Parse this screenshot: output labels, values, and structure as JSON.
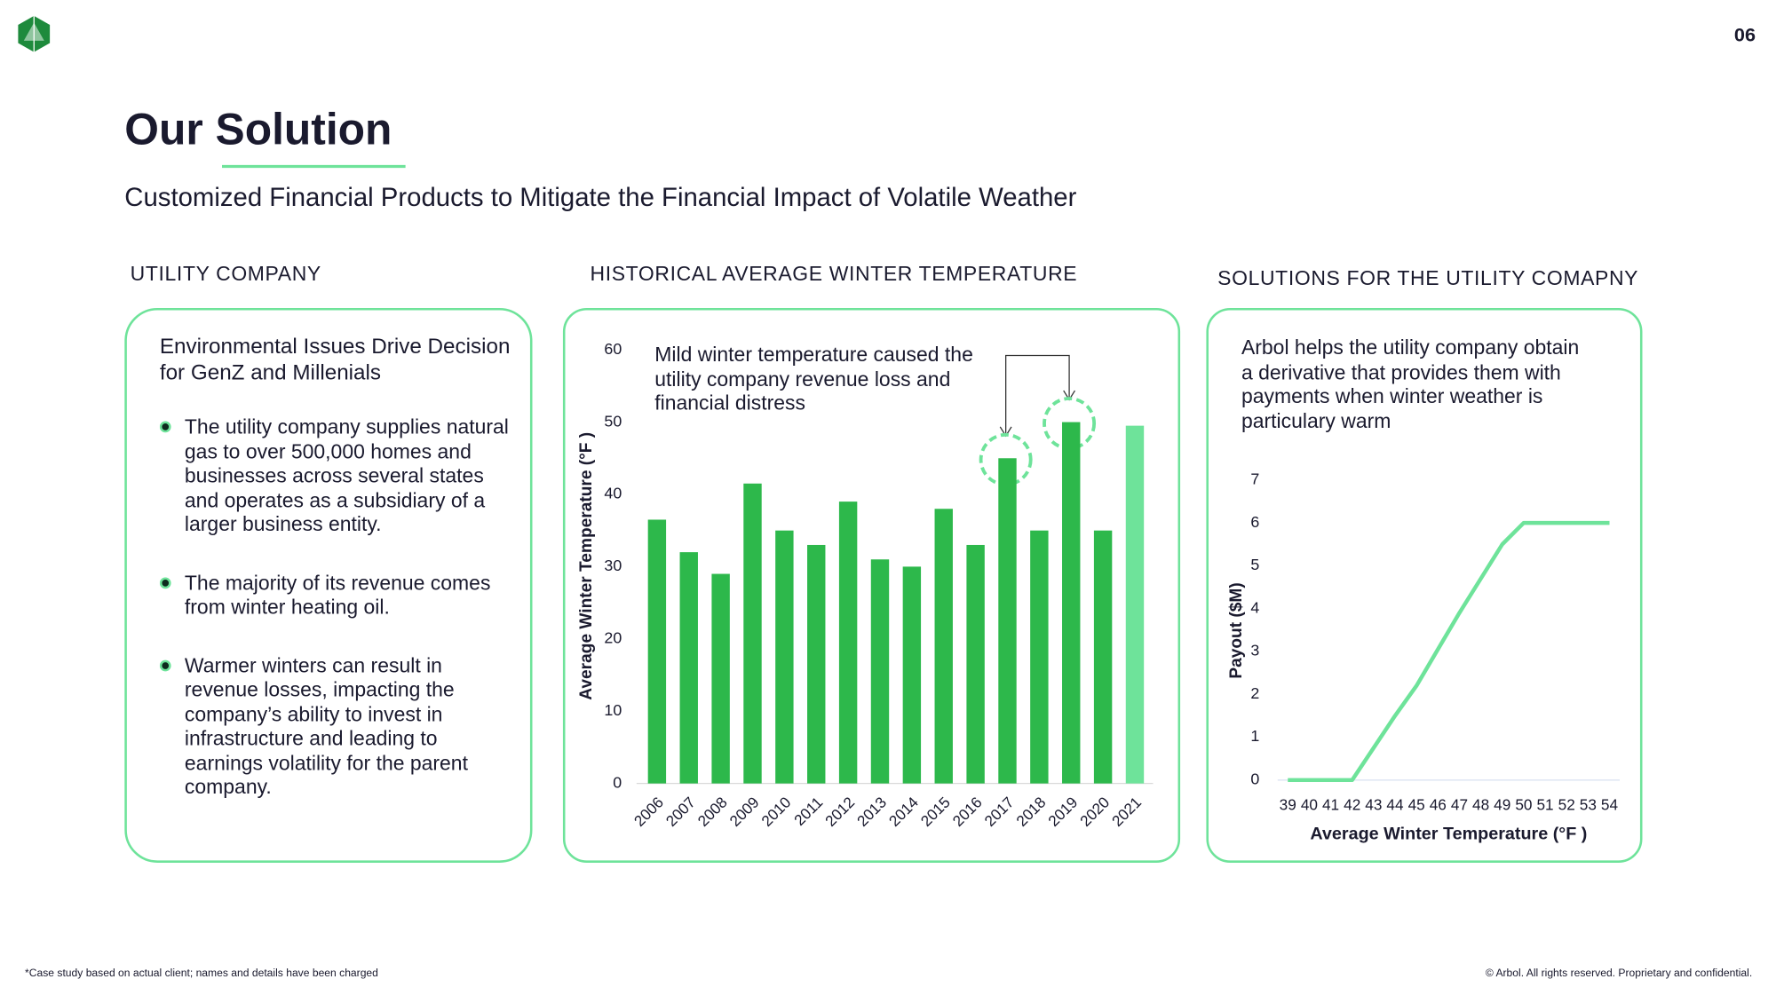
{
  "header": {
    "page_number": "06",
    "title": "Our Solution",
    "subtitle": "Customized Financial Products to Mitigate the Financial Impact of Volatile Weather"
  },
  "panels": [
    {
      "heading": "UTILITY COMPANY",
      "title": "Environmental Issues Drive Decision for GenZ and Millenials",
      "bullets": [
        "The utility company supplies natural gas to over 500,000 homes and businesses across several states and operates as a subsidiary of a larger business entity.",
        "The majority of its revenue comes from winter heating oil.",
        "Warmer winters can result in revenue losses, impacting the company’s ability to invest in infrastructure and leading to earnings volatility for the parent company."
      ]
    },
    {
      "heading": "HISTORICAL AVERAGE WINTER TEMPERATURE"
    },
    {
      "heading": "SOLUTIONS FOR THE UTILITY COMAPNY",
      "text": "Arbol helps the utility company obtain a derivative that provides them with payments when winter weather is particulary warm"
    }
  ],
  "chart_data": [
    {
      "type": "bar",
      "y_label": "Average Winter Temperature (°F )",
      "annotation": "Mild winter temperature caused the utility company revenue loss and financial distress",
      "categories": [
        "2006",
        "2007",
        "2008",
        "2009",
        "2010",
        "2011",
        "2012",
        "2013",
        "2014",
        "2015",
        "2016",
        "2017",
        "2018",
        "2019",
        "2020",
        "2021"
      ],
      "values": [
        36.5,
        32,
        29,
        41.5,
        35,
        33,
        39,
        31,
        30,
        38,
        33,
        45,
        35,
        50,
        35,
        49.5
      ],
      "colors": [
        "#2db84b",
        "#2db84b",
        "#2db84b",
        "#2db84b",
        "#2db84b",
        "#2db84b",
        "#2db84b",
        "#2db84b",
        "#2db84b",
        "#2db84b",
        "#2db84b",
        "#2db84b",
        "#2db84b",
        "#2db84b",
        "#2db84b",
        "#6ee39a"
      ],
      "ylim": [
        0,
        60
      ],
      "yticks": [
        0,
        10,
        20,
        30,
        40,
        50,
        60
      ],
      "grid": false
    },
    {
      "type": "line",
      "x_label": "Average Winter Temperature (°F )",
      "y_label": "Payout ($M)",
      "x": [
        39,
        40,
        41,
        42,
        43,
        44,
        45,
        46,
        47,
        48,
        49,
        50,
        51,
        52,
        53,
        54
      ],
      "values": [
        0,
        0,
        0,
        0,
        0.75,
        1.5,
        2.2,
        3.05,
        3.9,
        4.7,
        5.5,
        6,
        6,
        6,
        6,
        6
      ],
      "color": "#6ee39a",
      "xlim": [
        39,
        54
      ],
      "xticks": [
        39,
        40,
        41,
        42,
        43,
        44,
        45,
        46,
        47,
        48,
        49,
        50,
        51,
        52,
        53,
        54
      ],
      "ylim": [
        0,
        7
      ],
      "yticks": [
        0,
        1,
        2,
        3,
        4,
        5,
        6,
        7
      ],
      "grid": false
    }
  ],
  "footer": {
    "note": "*Case study based on actual client; names and details have been charged",
    "copyright": "© Arbol. All rights reserved. Proprietary and confidential."
  }
}
